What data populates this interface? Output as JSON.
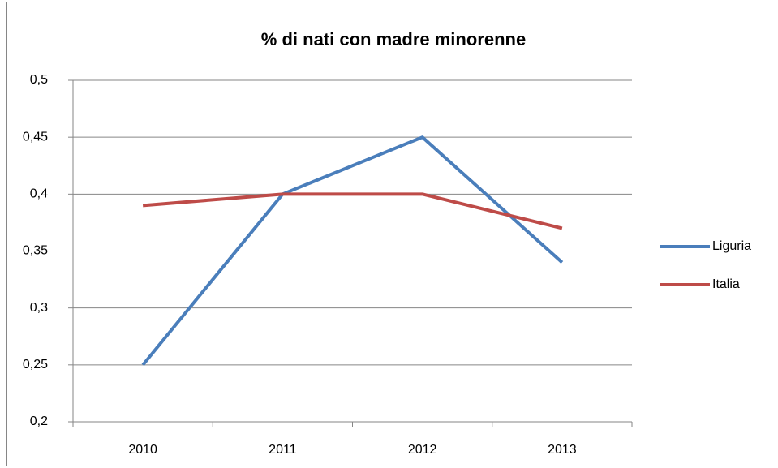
{
  "chart_data": {
    "type": "line",
    "title": "% di nati con madre minorenne",
    "categories": [
      "2010",
      "2011",
      "2012",
      "2013"
    ],
    "series": [
      {
        "name": "Liguria",
        "color": "#4a7ebb",
        "values": [
          0.25,
          0.4,
          0.45,
          0.34
        ]
      },
      {
        "name": "Italia",
        "color": "#be4b48",
        "values": [
          0.39,
          0.4,
          0.4,
          0.37
        ]
      }
    ],
    "ylim": [
      0.2,
      0.5
    ],
    "yticks": [
      {
        "value": 0.2,
        "label": "0,2"
      },
      {
        "value": 0.25,
        "label": "0,25"
      },
      {
        "value": 0.3,
        "label": "0,3"
      },
      {
        "value": 0.35,
        "label": "0,35"
      },
      {
        "value": 0.4,
        "label": "0,4"
      },
      {
        "value": 0.45,
        "label": "0,45"
      },
      {
        "value": 0.5,
        "label": "0,5"
      }
    ],
    "grid": true,
    "legend": "right"
  }
}
